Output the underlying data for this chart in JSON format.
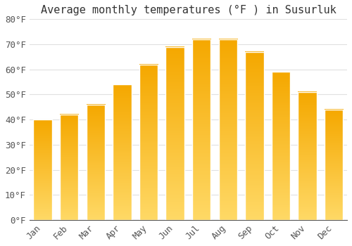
{
  "title": "Average monthly temperatures (°F ) in Susurluk",
  "months": [
    "Jan",
    "Feb",
    "Mar",
    "Apr",
    "May",
    "Jun",
    "Jul",
    "Aug",
    "Sep",
    "Oct",
    "Nov",
    "Dec"
  ],
  "values": [
    40,
    42,
    46,
    54,
    62,
    69,
    72,
    72,
    67,
    59,
    51,
    44
  ],
  "bar_color_top": "#F5A800",
  "bar_color_bottom": "#FFD966",
  "bar_edge_color": "#FFFFFF",
  "ylim": [
    0,
    80
  ],
  "ytick_step": 10,
  "background_color": "#FFFFFF",
  "grid_color": "#E0E0E0",
  "title_fontsize": 11,
  "tick_fontsize": 9,
  "font_family": "monospace",
  "tick_color": "#555555",
  "title_color": "#333333"
}
